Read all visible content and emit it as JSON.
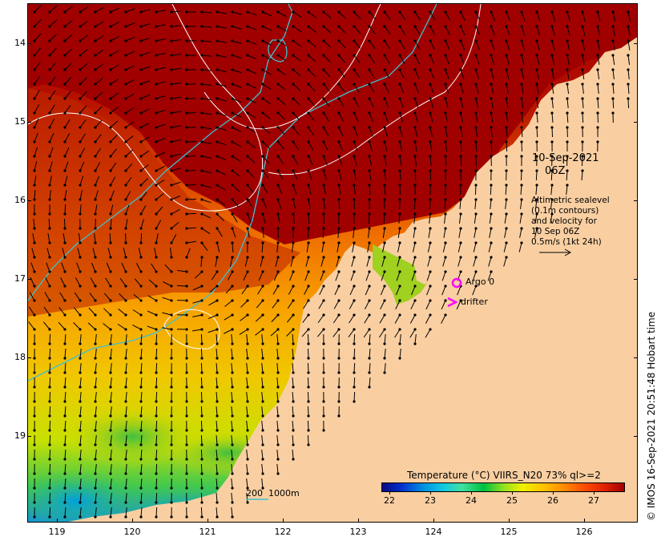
{
  "map": {
    "latitude_labels": [
      "14",
      "15",
      "16",
      "17",
      "18",
      "19"
    ],
    "longitude_labels": [
      "119",
      "120",
      "121",
      "122",
      "123",
      "124",
      "125",
      "126"
    ],
    "date": "10-Sep-2021",
    "time": "06Z",
    "velocity_note_lines": [
      "Altimetric sealevel",
      "(0.1m contours)",
      "and velocity for",
      "10 Sep 06Z",
      "0.5m/s (1kt 24h)"
    ],
    "argo_label": "Argo 0",
    "drifter_label": "drifter",
    "scale_label": "200  1000m",
    "credit": "© IMOS 16-Sep-2021 20:51:48 Hobart time",
    "colors": {
      "land": "#f9cfa2",
      "warm_sst": "#a00000",
      "isobath": "#40c0d0",
      "sealevel_contour": "#ffffff",
      "argo_marker": "#ff00ff",
      "arrows": "#000000"
    }
  },
  "legend": {
    "title": "Temperature (°C) VIIRS_N20 73% ql>=2",
    "ticks": [
      "22",
      "23",
      "24",
      "25",
      "26",
      "27"
    ],
    "range": [
      21.8,
      27.8
    ]
  }
}
